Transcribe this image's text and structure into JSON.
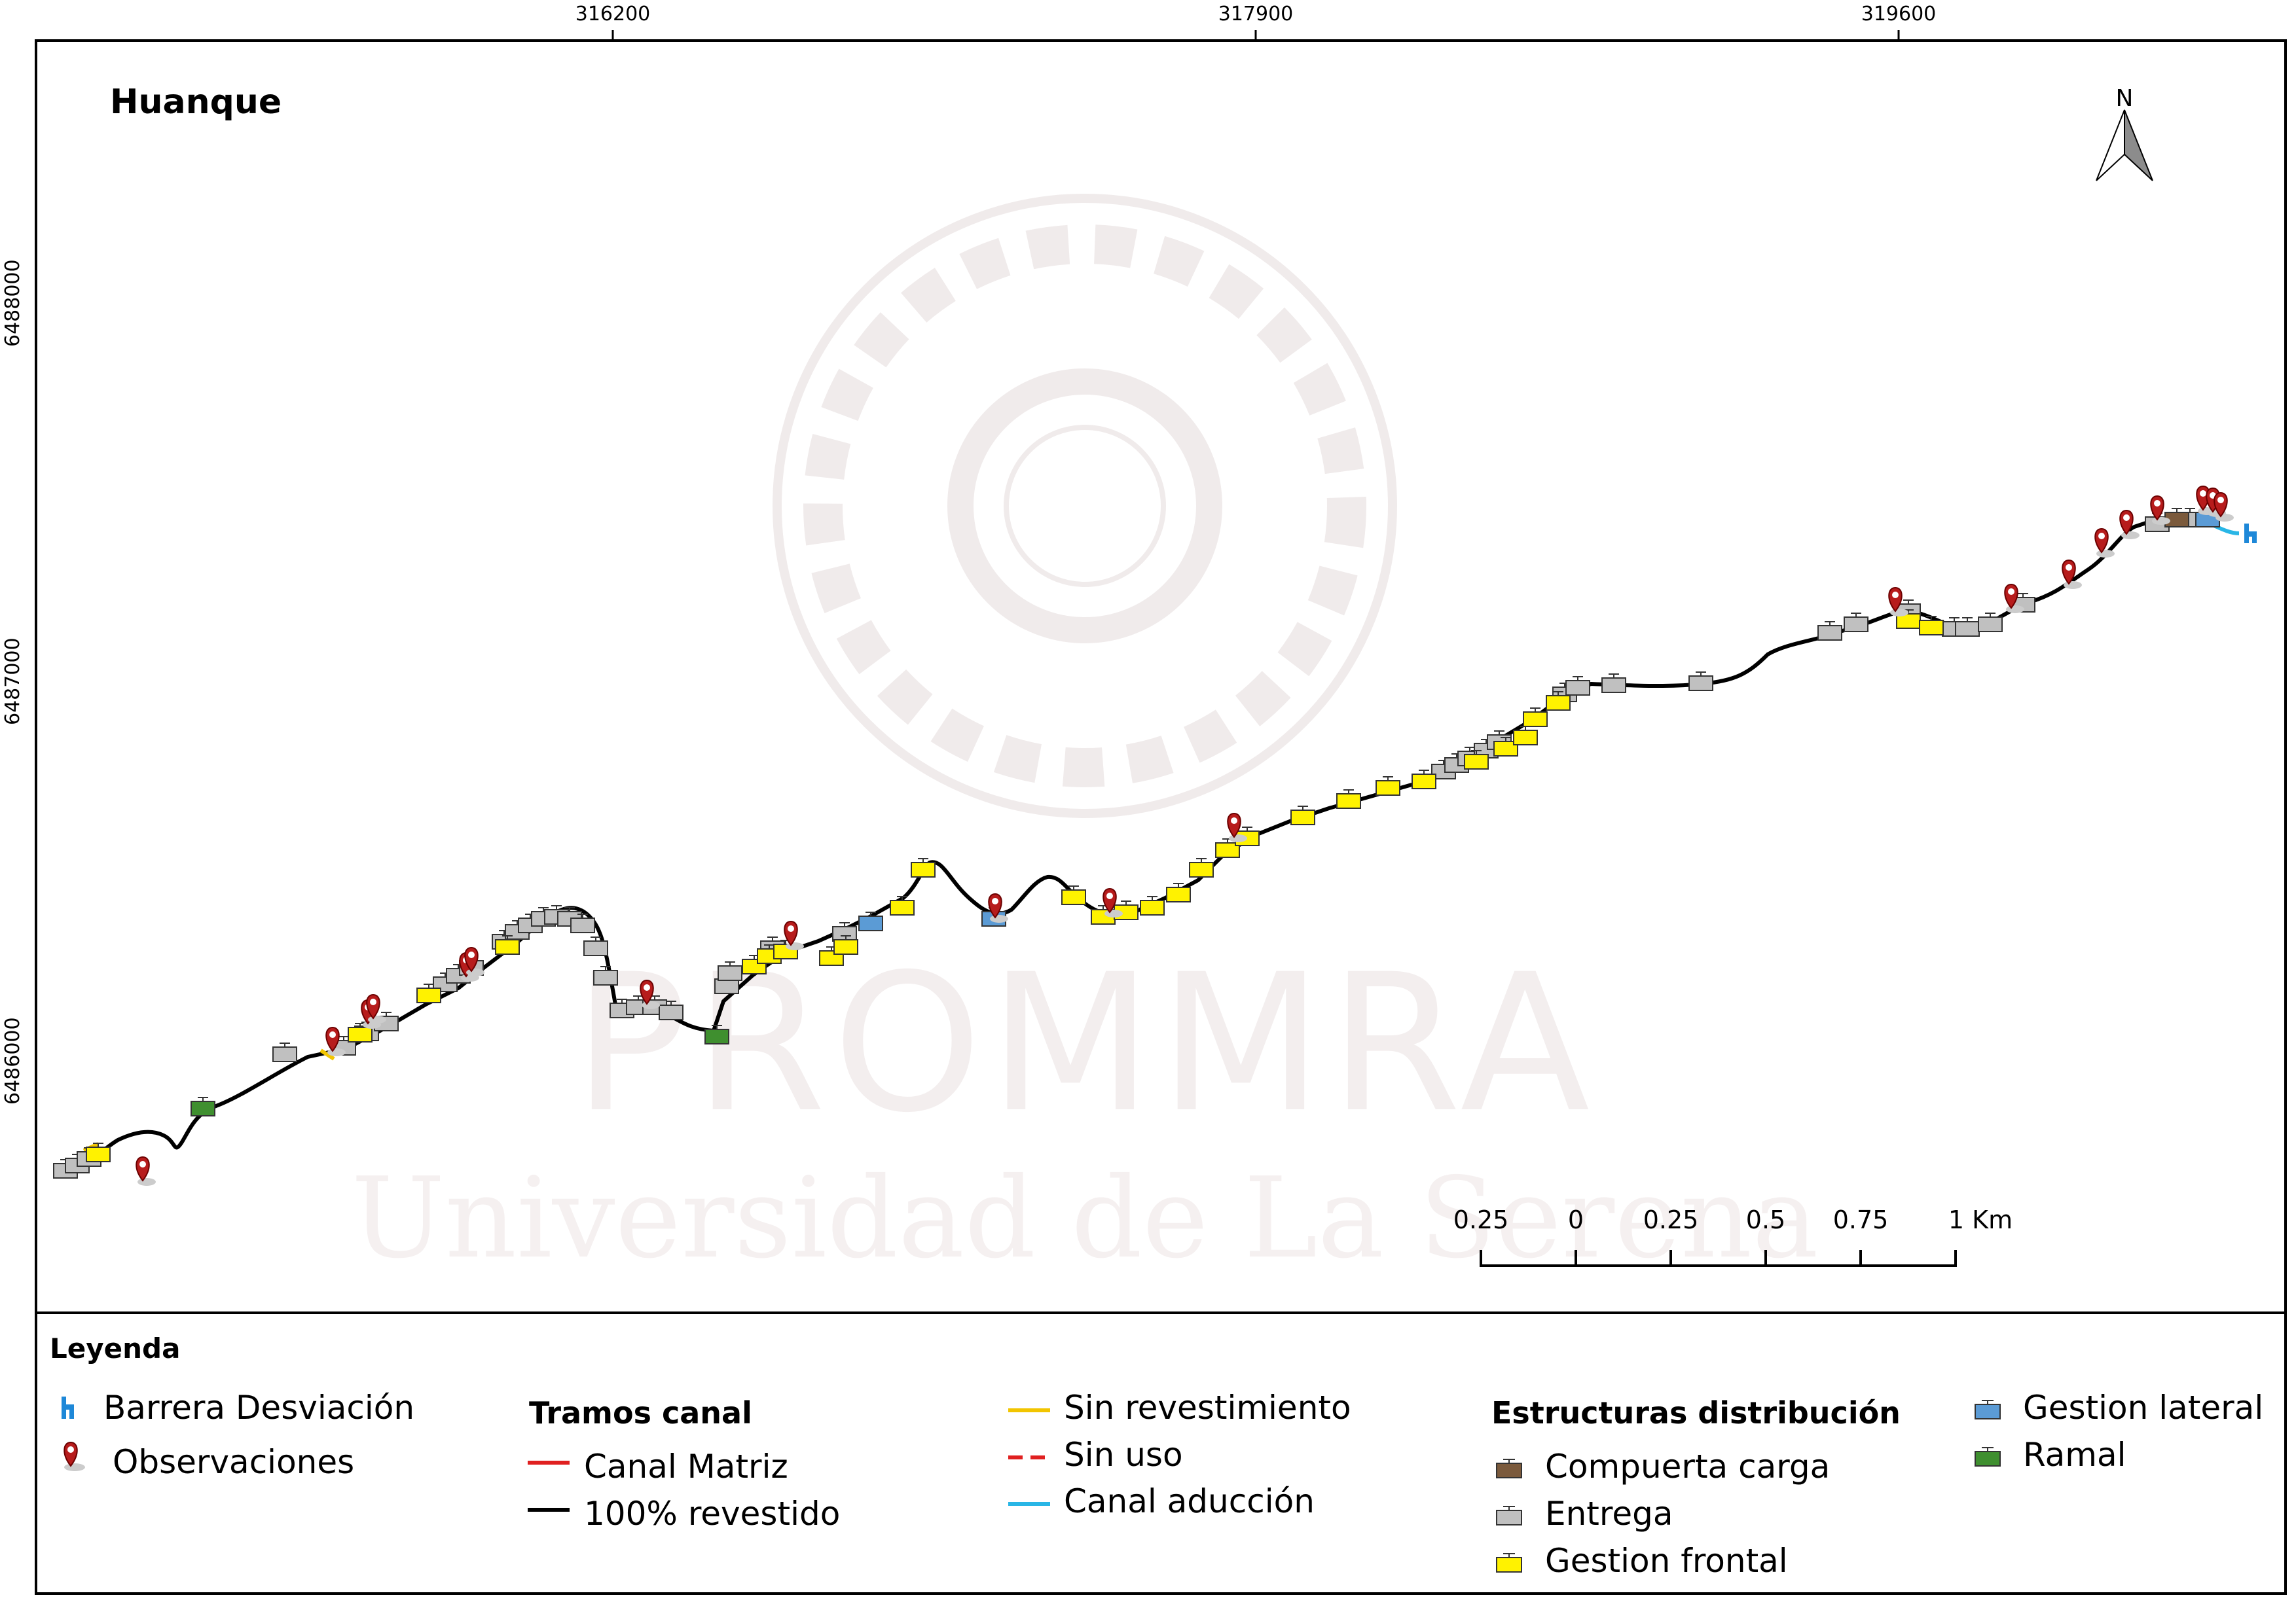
{
  "map": {
    "title": "Huanque",
    "north_label": "N",
    "x_ticks": [
      "316200",
      "317900",
      "319600"
    ],
    "y_ticks": [
      "6488000",
      "6487000",
      "6486000"
    ],
    "scale_bar": {
      "labels": [
        "0.25",
        "0",
        "0.25",
        "0.5",
        "0.75",
        "1 Km"
      ]
    },
    "watermark": {
      "line1": "PROMMRA",
      "line2": "Universidad de La Serena"
    }
  },
  "legend": {
    "title": "Leyenda",
    "point_items": [
      {
        "label": "Barrera Desviación",
        "icon": "barrier-icon"
      },
      {
        "label": "Observaciones",
        "icon": "map-pin-icon"
      }
    ],
    "tramos": {
      "heading": "Tramos canal",
      "items": [
        {
          "label": "Canal Matriz",
          "color": "#e02020",
          "style": "solid"
        },
        {
          "label": "100% revestido",
          "color": "#000000",
          "style": "solid"
        },
        {
          "label": "Sin revestimiento",
          "color": "#f2c500",
          "style": "solid"
        },
        {
          "label": "Sin uso",
          "color": "#e02020",
          "style": "dashed"
        },
        {
          "label": "Canal aducción",
          "color": "#29b6e6",
          "style": "solid"
        }
      ]
    },
    "estructuras": {
      "heading": "Estructuras distribución",
      "items": [
        {
          "label": "Compuerta carga",
          "color": "#7b5a3c"
        },
        {
          "label": "Entrega",
          "color": "#c0c0c0"
        },
        {
          "label": "Gestion frontal",
          "color": "#fff200"
        },
        {
          "label": "Gestion lateral",
          "color": "#5b9bd5"
        },
        {
          "label": "Ramal",
          "color": "#3f8f2f"
        }
      ]
    }
  }
}
